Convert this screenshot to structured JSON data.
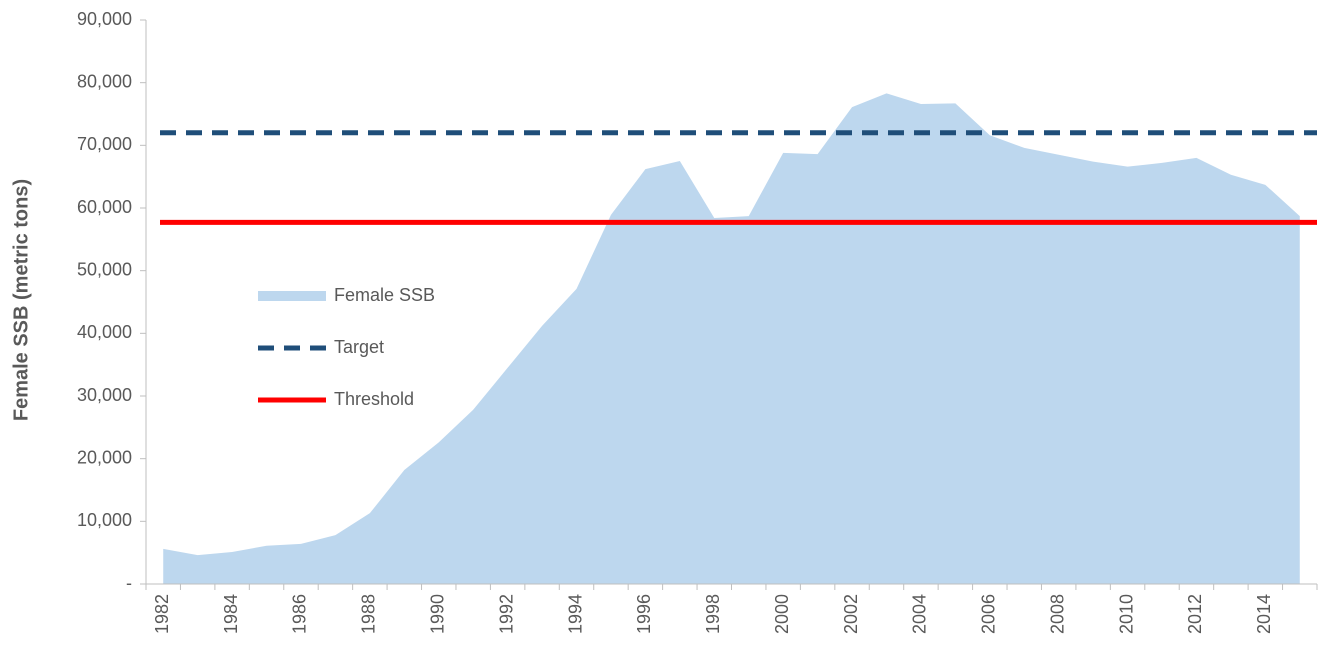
{
  "chart_data": {
    "type": "area",
    "y_label": "Female SSB  (metric tons)",
    "categories": [
      "1982",
      null,
      "1984",
      null,
      "1986",
      null,
      "1988",
      null,
      "1990",
      null,
      "1992",
      null,
      "1994",
      null,
      "1996",
      null,
      "1998",
      null,
      "2000",
      null,
      "2002",
      null,
      "2004",
      null,
      "2006",
      null,
      "2008",
      null,
      "2010",
      null,
      "2012",
      null,
      "2014",
      null
    ],
    "series": [
      {
        "name": "Female SSB",
        "color": "#bdd7ee",
        "values": [
          5600,
          4600,
          5100,
          6100,
          6400,
          7800,
          11300,
          18200,
          22600,
          27800,
          34500,
          41200,
          47100,
          58900,
          66200,
          67500,
          58400,
          58700,
          68800,
          68600,
          76100,
          78300,
          76600,
          76700,
          71600,
          69600,
          68500,
          67400,
          66600,
          67200,
          68000,
          65300,
          63700,
          58700
        ]
      }
    ],
    "reference_lines": [
      {
        "name": "Target",
        "color": "#1f4e79",
        "style": "dashed",
        "value": 72000
      },
      {
        "name": "Threshold",
        "color": "#ff0000",
        "style": "solid",
        "value": 57700
      }
    ],
    "ylim": [
      0,
      90000
    ],
    "yticks": [
      {
        "value": 0,
        "label": "-"
      },
      {
        "value": 10000,
        "label": "10,000"
      },
      {
        "value": 20000,
        "label": "20,000"
      },
      {
        "value": 30000,
        "label": "30,000"
      },
      {
        "value": 40000,
        "label": "40,000"
      },
      {
        "value": 50000,
        "label": "50,000"
      },
      {
        "value": 60000,
        "label": "60,000"
      },
      {
        "value": 70000,
        "label": "70,000"
      },
      {
        "value": 80000,
        "label": "80,000"
      },
      {
        "value": 90000,
        "label": "90,000"
      }
    ],
    "legend": "center-left"
  }
}
